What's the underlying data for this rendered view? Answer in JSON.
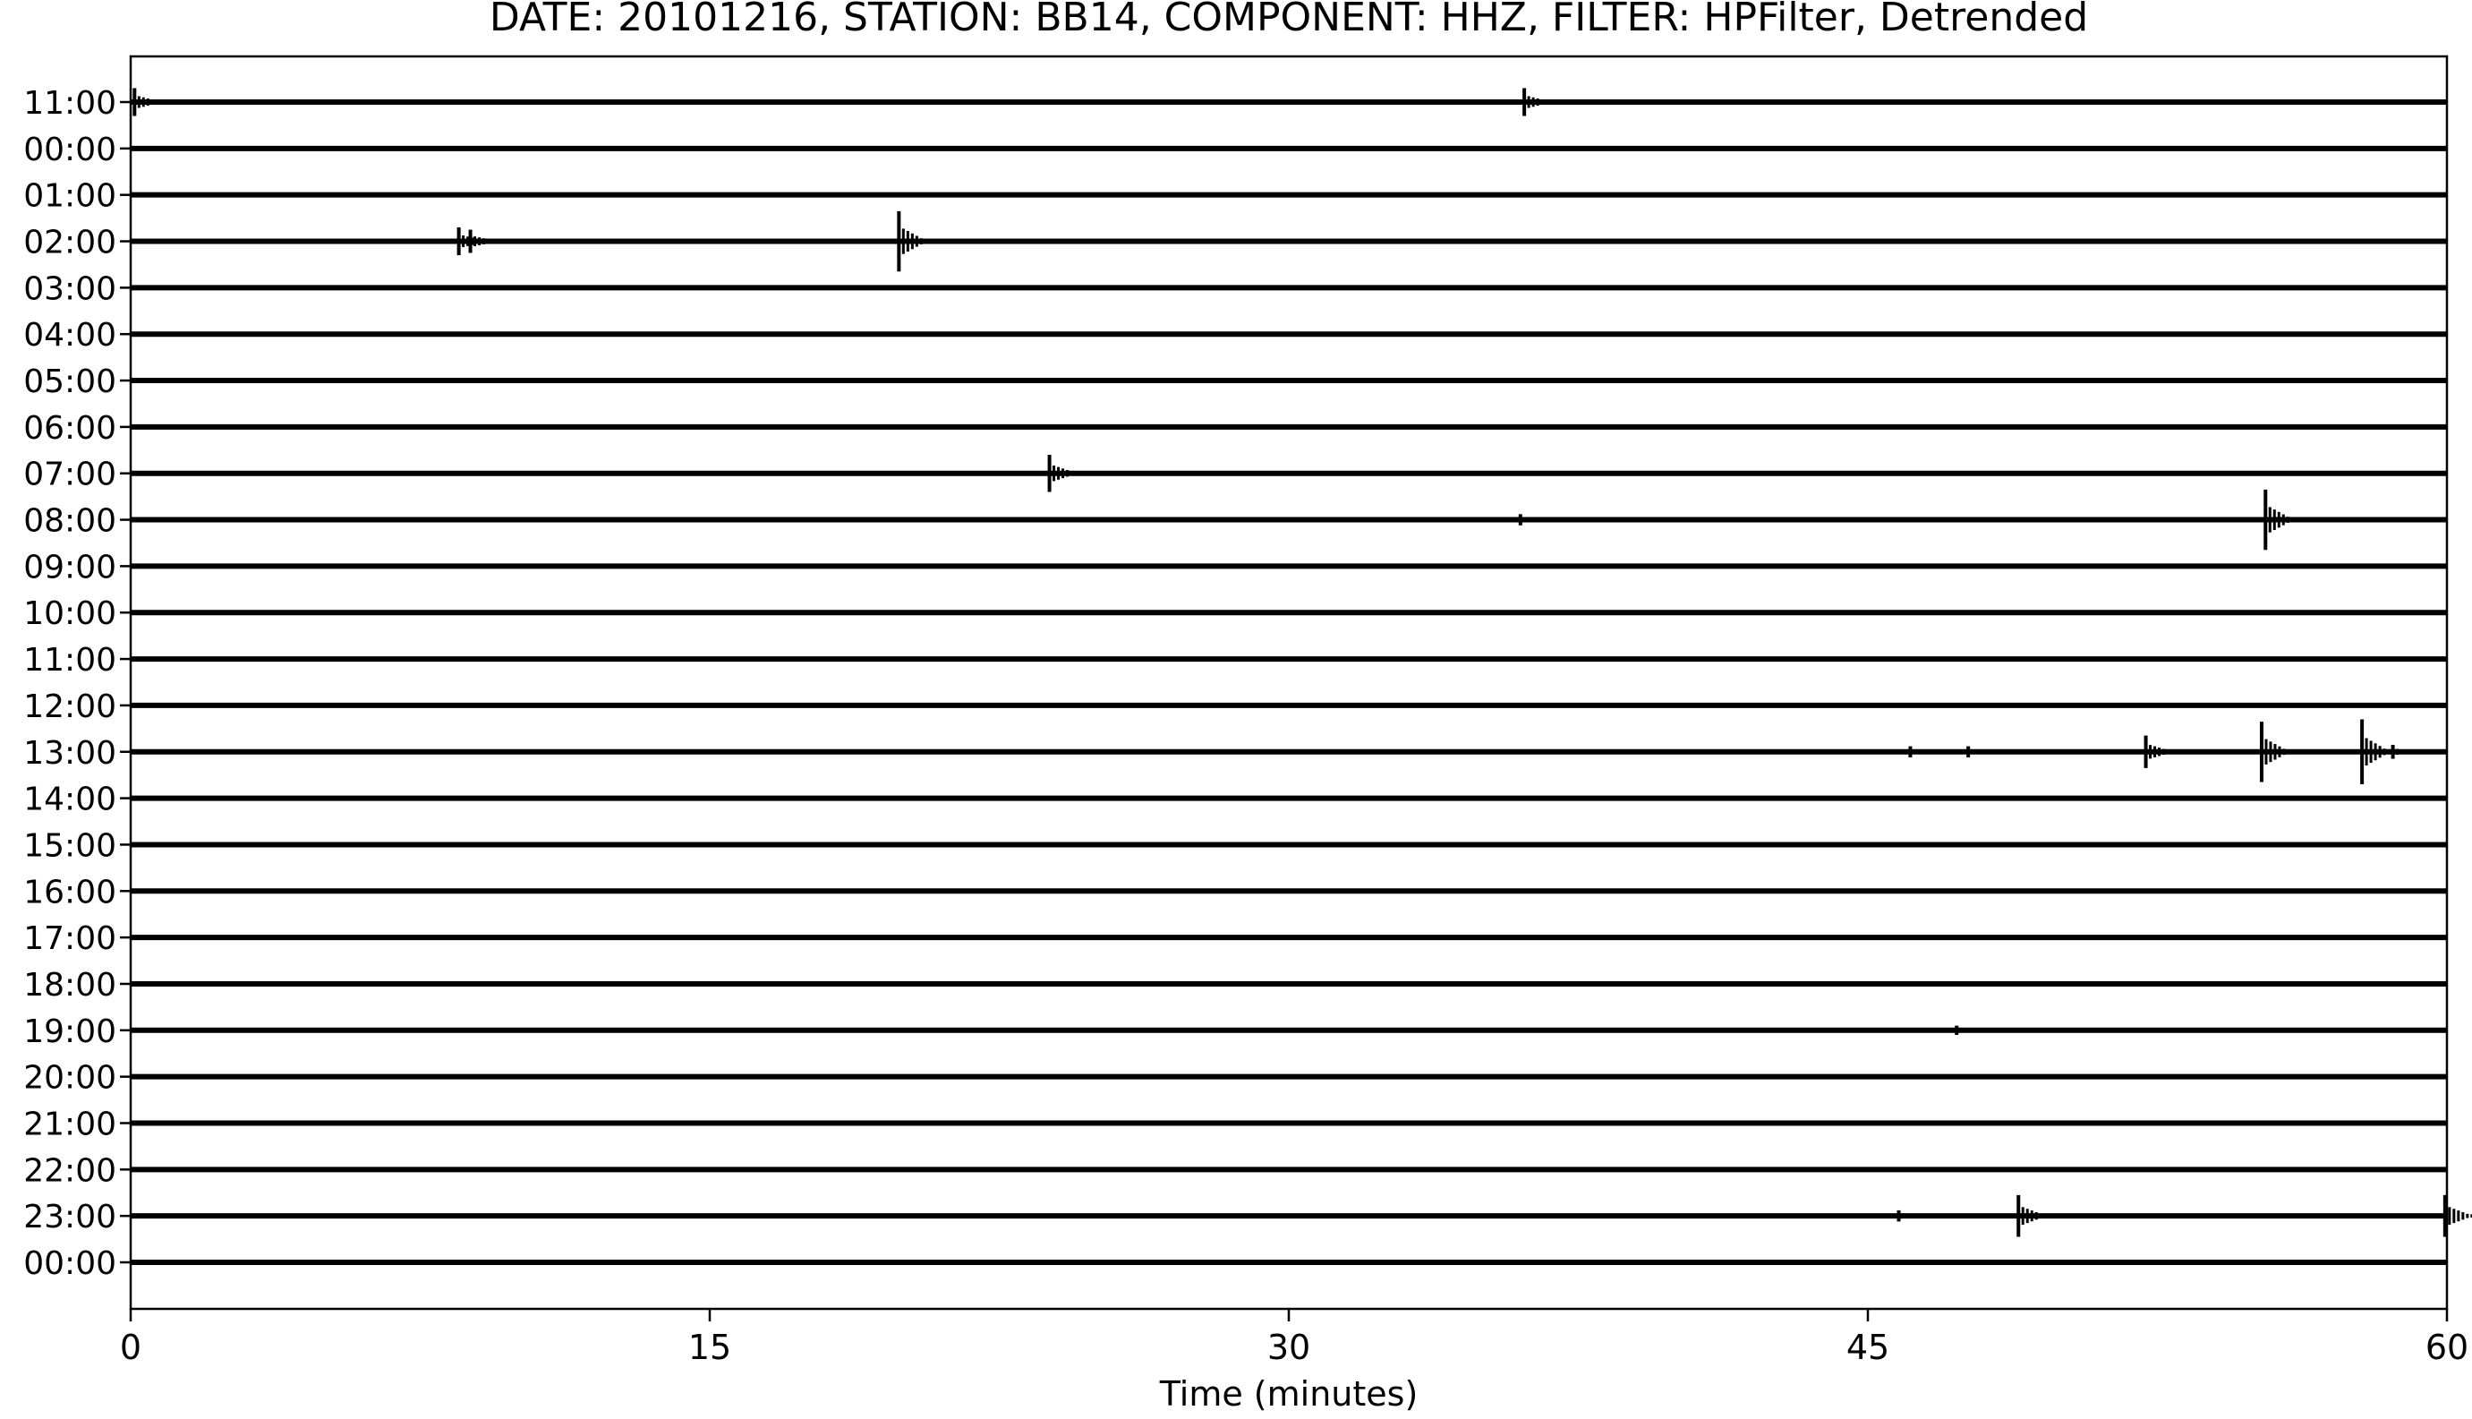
{
  "chart_data": {
    "type": "line",
    "title": "DATE: 20101216, STATION: BB14, COMPONENT: HHZ, FILTER: HPFilter, Detrended",
    "xlabel": "Time (minutes)",
    "ylabel": "",
    "xlim": [
      0,
      60
    ],
    "x_ticks": [
      {
        "value": 0,
        "label": "0"
      },
      {
        "value": 15,
        "label": "15"
      },
      {
        "value": 30,
        "label": "30"
      },
      {
        "value": 45,
        "label": "45"
      },
      {
        "value": 60,
        "label": "60"
      }
    ],
    "traces": [
      {
        "label": "11:00",
        "events": [
          {
            "t": 0.1,
            "amp": 0.3
          },
          {
            "t": 36.1,
            "amp": 0.3
          }
        ]
      },
      {
        "label": "00:00",
        "events": []
      },
      {
        "label": "01:00",
        "events": []
      },
      {
        "label": "02:00",
        "events": [
          {
            "t": 8.5,
            "amp": 0.3
          },
          {
            "t": 8.8,
            "amp": 0.25
          },
          {
            "t": 19.9,
            "amp": 0.65
          }
        ]
      },
      {
        "label": "03:00",
        "events": []
      },
      {
        "label": "04:00",
        "events": []
      },
      {
        "label": "05:00",
        "events": []
      },
      {
        "label": "06:00",
        "events": []
      },
      {
        "label": "07:00",
        "events": [
          {
            "t": 23.8,
            "amp": 0.4
          }
        ]
      },
      {
        "label": "08:00",
        "events": [
          {
            "t": 36.0,
            "amp": 0.12
          },
          {
            "t": 55.3,
            "amp": 0.65
          }
        ]
      },
      {
        "label": "09:00",
        "events": []
      },
      {
        "label": "10:00",
        "events": []
      },
      {
        "label": "11:00",
        "events": []
      },
      {
        "label": "12:00",
        "events": []
      },
      {
        "label": "13:00",
        "events": [
          {
            "t": 46.1,
            "amp": 0.12
          },
          {
            "t": 47.6,
            "amp": 0.12
          },
          {
            "t": 52.2,
            "amp": 0.35
          },
          {
            "t": 55.2,
            "amp": 0.65
          },
          {
            "t": 57.8,
            "amp": 0.7
          },
          {
            "t": 58.6,
            "amp": 0.15
          }
        ]
      },
      {
        "label": "14:00",
        "events": []
      },
      {
        "label": "15:00",
        "events": []
      },
      {
        "label": "16:00",
        "events": []
      },
      {
        "label": "17:00",
        "events": []
      },
      {
        "label": "18:00",
        "events": []
      },
      {
        "label": "19:00",
        "events": [
          {
            "t": 47.3,
            "amp": 0.1
          }
        ]
      },
      {
        "label": "20:00",
        "events": []
      },
      {
        "label": "21:00",
        "events": []
      },
      {
        "label": "22:00",
        "events": []
      },
      {
        "label": "23:00",
        "events": [
          {
            "t": 45.8,
            "amp": 0.12
          },
          {
            "t": 48.9,
            "amp": 0.45
          },
          {
            "t": 59.95,
            "amp": 0.45
          }
        ]
      },
      {
        "label": "00:00",
        "events": []
      }
    ]
  }
}
